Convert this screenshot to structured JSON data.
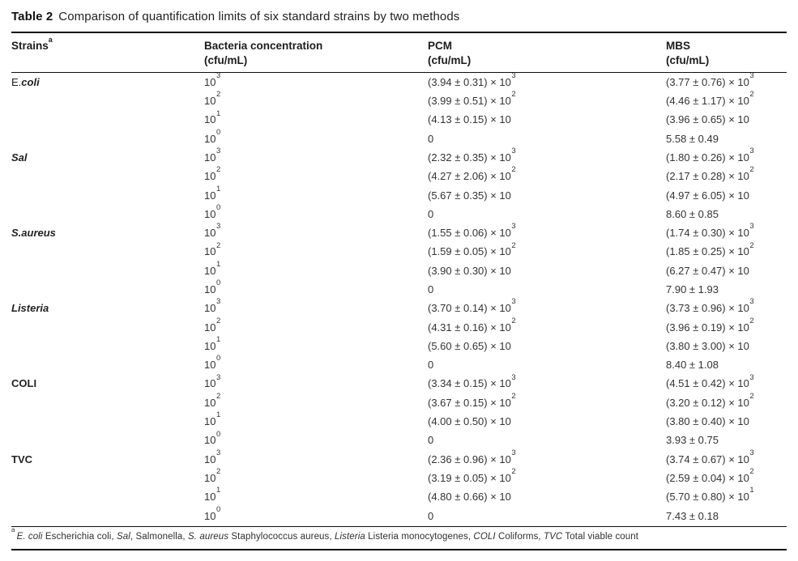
{
  "table": {
    "label": "Table 2",
    "caption": "Comparison of quantification limits of six standard strains by two methods",
    "columns": [
      {
        "name": "Strains",
        "sup": "a",
        "sub": ""
      },
      {
        "name": "Bacteria concentration",
        "sup": "",
        "sub": "(cfu/mL)"
      },
      {
        "name": "PCM",
        "sup": "",
        "sub": "(cfu/mL)"
      },
      {
        "name": "MBS",
        "sup": "",
        "sub": "(cfu/mL)"
      }
    ],
    "groups": [
      {
        "strain": [
          {
            "t": "E.",
            "s": "r"
          },
          {
            "t": "coli",
            "s": "bi"
          }
        ],
        "rows": [
          {
            "conc": "10^3",
            "pcm": "(3.94 ± 0.31) × 10^3",
            "mbs": "(3.77 ± 0.76) × 10^3"
          },
          {
            "conc": "10^2",
            "pcm": "(3.99 ± 0.51) × 10^2",
            "mbs": "(4.46 ± 1.17) × 10^2"
          },
          {
            "conc": "10^1",
            "pcm": "(4.13 ± 0.15) × 10",
            "mbs": "(3.96 ± 0.65) × 10"
          },
          {
            "conc": "10^0",
            "pcm": "0",
            "mbs": "5.58 ± 0.49"
          }
        ]
      },
      {
        "strain": [
          {
            "t": "Sal",
            "s": "bi"
          }
        ],
        "rows": [
          {
            "conc": "10^3",
            "pcm": "(2.32 ± 0.35) × 10^3",
            "mbs": "(1.80 ± 0.26) × 10^3"
          },
          {
            "conc": "10^2",
            "pcm": "(4.27 ± 2.06) × 10^2",
            "mbs": "(2.17 ± 0.28) × 10^2"
          },
          {
            "conc": "10^1",
            "pcm": "(5.67 ± 0.35) × 10",
            "mbs": "(4.97 ± 6.05) × 10"
          },
          {
            "conc": "10^0",
            "pcm": "0",
            "mbs": "8.60 ± 0.85"
          }
        ]
      },
      {
        "strain": [
          {
            "t": "S.aureus",
            "s": "bi"
          }
        ],
        "rows": [
          {
            "conc": "10^3",
            "pcm": "(1.55 ± 0.06) × 10^3",
            "mbs": "(1.74 ± 0.30) × 10^3"
          },
          {
            "conc": "10^2",
            "pcm": "(1.59 ± 0.05) × 10^2",
            "mbs": "(1.85 ± 0.25) × 10^2"
          },
          {
            "conc": "10^1",
            "pcm": "(3.90 ± 0.30) × 10",
            "mbs": "(6.27 ± 0.47) × 10"
          },
          {
            "conc": "10^0",
            "pcm": "0",
            "mbs": "7.90 ± 1.93"
          }
        ]
      },
      {
        "strain": [
          {
            "t": "Listeria",
            "s": "bi"
          }
        ],
        "rows": [
          {
            "conc": "10^3",
            "pcm": "(3.70 ± 0.14) × 10^3",
            "mbs": "(3.73 ± 0.96) × 10^3"
          },
          {
            "conc": "10^2",
            "pcm": "(4.31 ± 0.16) × 10^2",
            "mbs": "(3.96 ± 0.19) × 10^2"
          },
          {
            "conc": "10^1",
            "pcm": "(5.60 ± 0.65) × 10",
            "mbs": "(3.80 ± 3.00) × 10"
          },
          {
            "conc": "10^0",
            "pcm": "0",
            "mbs": "8.40 ± 1.08"
          }
        ]
      },
      {
        "strain": [
          {
            "t": "COLI",
            "s": "b"
          }
        ],
        "rows": [
          {
            "conc": "10^3",
            "pcm": "(3.34 ± 0.15) × 10^3",
            "mbs": "(4.51 ± 0.42) × 10^3"
          },
          {
            "conc": "10^2",
            "pcm": "(3.67 ± 0.15) × 10^2",
            "mbs": "(3.20 ± 0.12) × 10^2"
          },
          {
            "conc": "10^1",
            "pcm": "(4.00 ± 0.50) × 10",
            "mbs": "(3.80 ± 0.40) × 10"
          },
          {
            "conc": "10^0",
            "pcm": "0",
            "mbs": "3.93 ± 0.75"
          }
        ]
      },
      {
        "strain": [
          {
            "t": "TVC",
            "s": "b"
          }
        ],
        "rows": [
          {
            "conc": "10^3",
            "pcm": "(2.36 ± 0.96) × 10^3",
            "mbs": "(3.74 ± 0.67) × 10^3"
          },
          {
            "conc": "10^2",
            "pcm": "(3.19 ± 0.05) × 10^2",
            "mbs": "(2.59 ± 0.04) × 10^2"
          },
          {
            "conc": "10^1",
            "pcm": "(4.80 ± 0.66) × 10",
            "mbs": "(5.70 ± 0.80) × 10^1"
          },
          {
            "conc": "10^0",
            "pcm": "0",
            "mbs": "7.43 ± 0.18"
          }
        ]
      }
    ],
    "footnote": [
      {
        "t": "a",
        "s": "sup"
      },
      {
        "t": "E. coli",
        "s": "i"
      },
      {
        "t": " Escherichia coli, ",
        "s": "r"
      },
      {
        "t": "Sal",
        "s": "i"
      },
      {
        "t": ", Salmonella, ",
        "s": "r"
      },
      {
        "t": "S. aureus",
        "s": "i"
      },
      {
        "t": " Staphylococcus aureus, ",
        "s": "r"
      },
      {
        "t": "Listeria",
        "s": "i"
      },
      {
        "t": " Listeria monocytogenes, ",
        "s": "r"
      },
      {
        "t": "COLI",
        "s": "i"
      },
      {
        "t": " Coliforms, ",
        "s": "r"
      },
      {
        "t": "TVC",
        "s": "i"
      },
      {
        "t": " Total viable count",
        "s": "r"
      }
    ]
  }
}
